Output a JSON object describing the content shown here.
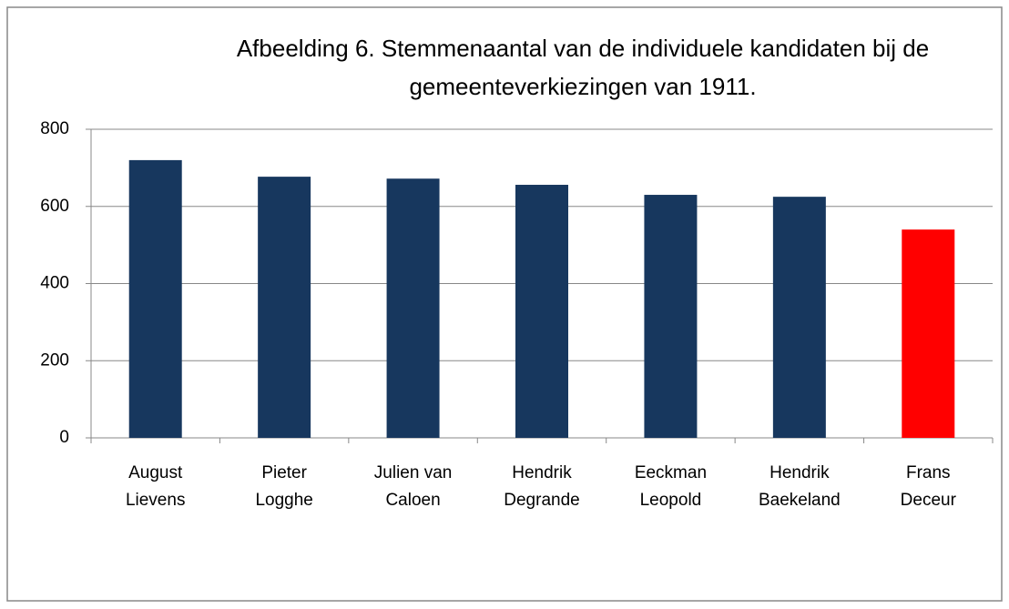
{
  "chart_data": {
    "type": "bar",
    "title": "Afbeelding 6. Stemmenaantal van de individuele kandidaten bij de\ngemeenteverkiezingen van 1911.",
    "categories": [
      "August\nLievens",
      "Pieter\nLogghe",
      "Julien van\nCaloen",
      "Hendrik\nDegrande",
      "Eeckman\nLeopold",
      "Hendrik\nBaekeland",
      "Frans\nDeceur"
    ],
    "values": [
      720,
      677,
      672,
      656,
      630,
      625,
      540
    ],
    "colors": [
      "#17375e",
      "#17375e",
      "#17375e",
      "#17375e",
      "#17375e",
      "#17375e",
      "#ff0000"
    ],
    "ylim": [
      0,
      800
    ],
    "yticks": [
      0,
      200,
      400,
      600,
      800
    ],
    "grid": true
  }
}
